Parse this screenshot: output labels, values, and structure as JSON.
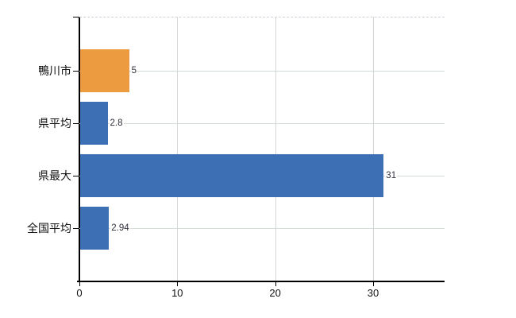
{
  "chart_data": {
    "type": "bar",
    "orientation": "horizontal",
    "categories": [
      "鴨川市",
      "県平均",
      "県最大",
      "全国平均"
    ],
    "values": [
      5,
      2.8,
      31,
      2.94
    ],
    "value_labels": [
      "5",
      "2.8",
      "31",
      "2.94"
    ],
    "bar_colors": [
      "#ED9B40",
      "#3C6FB3",
      "#3C6FB3",
      "#3C6FB3"
    ],
    "x_tick_values": [
      0,
      10,
      20,
      30
    ],
    "x_tick_labels": [
      "0",
      "10",
      "20",
      "30"
    ],
    "xlim": [
      0,
      37.3
    ],
    "grid": true,
    "legend": false,
    "title": "",
    "xlabel": "",
    "ylabel": "",
    "colors": {
      "default_bar": "#3C6FB3",
      "highlight_bar": "#ED9B40",
      "axis": "#000000",
      "hgrid": "#d3dcd3",
      "vgrid": "#d6d6d6",
      "top_border": "#cfd2da",
      "tick_text": "#111111",
      "value_text": "#30303c"
    }
  }
}
